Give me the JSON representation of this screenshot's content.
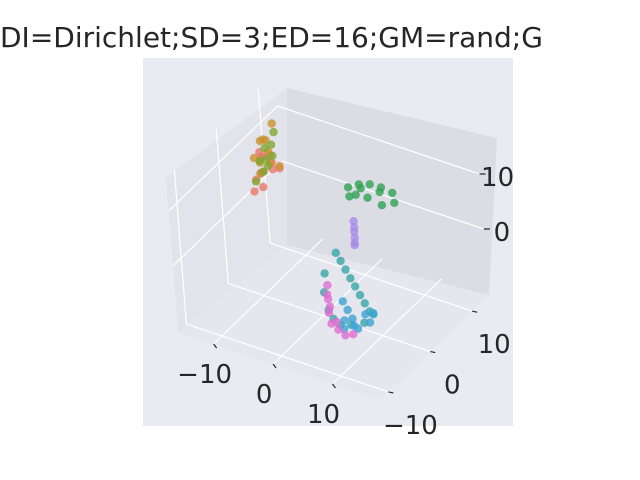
{
  "title": "DI=Dirichlet;SD=3;ED=16;GM=rand;G",
  "chart_data": {
    "type": "scatter3d",
    "title": "DI=Dirichlet;SD=3;ED=16;GM=rand;G",
    "grid": true,
    "xlim": [
      -16,
      18
    ],
    "ylim": [
      -12,
      14
    ],
    "zlim": [
      -12,
      16
    ],
    "x_ticks": [
      "−10",
      "0",
      "10"
    ],
    "y_ticks": [
      "−10",
      "0",
      "10"
    ],
    "z_ticks": [
      "0",
      "10"
    ],
    "series": [
      {
        "color": "#e8756d",
        "x": [
          -13.0,
          -12.5,
          -12.2,
          -13.2,
          -12.0,
          -11.6,
          -12.8,
          -11.8,
          -13.4,
          -12.3,
          -11.5,
          -12.6
        ],
        "y": [
          8.0,
          7.2,
          6.5,
          5.6,
          4.8,
          4.0,
          3.3,
          2.6,
          6.1,
          4.4,
          7.6,
          5.0
        ],
        "z": [
          4.0,
          6.0,
          8.0,
          5.0,
          9.0,
          7.0,
          3.5,
          6.5,
          2.0,
          10.0,
          5.0,
          8.5
        ]
      },
      {
        "color": "#c9922f",
        "x": [
          -12.0,
          -11.5,
          -12.6,
          -11.2,
          -12.2,
          -11.8,
          -12.9,
          -11.4,
          -12.4,
          -11.7
        ],
        "y": [
          6.0,
          5.0,
          7.0,
          4.0,
          3.0,
          8.0,
          5.5,
          6.5,
          4.5,
          3.5
        ],
        "z": [
          9.0,
          12.0,
          6.0,
          13.0,
          10.0,
          5.0,
          11.0,
          14.0,
          8.0,
          7.0
        ]
      },
      {
        "color": "#7fa632",
        "x": [
          -12.5,
          -11.8,
          -12.1,
          -11.4,
          -12.9,
          -11.9,
          -12.3,
          -11.6,
          -13.1
        ],
        "y": [
          7.5,
          6.5,
          5.5,
          4.5,
          6.8,
          3.8,
          5.0,
          7.0,
          4.2
        ],
        "z": [
          7.0,
          10.0,
          8.0,
          11.0,
          5.5,
          9.0,
          6.0,
          12.0,
          4.5
        ]
      },
      {
        "color": "#30a454",
        "x": [
          6.0,
          7.5,
          9.0,
          10.5,
          12.0,
          13.0,
          12.0,
          10.0,
          8.0,
          6.5,
          7.0,
          11.0
        ],
        "y": [
          0.0,
          0.5,
          1.0,
          1.5,
          2.0,
          1.0,
          -0.5,
          -1.0,
          -1.0,
          -0.5,
          1.5,
          0.5
        ],
        "z": [
          13.5,
          14.2,
          14.4,
          14.0,
          13.2,
          12.5,
          12.8,
          13.8,
          13.6,
          12.4,
          12.6,
          14.1
        ]
      },
      {
        "color": "#37a8a8",
        "x": [
          3.0,
          4.5,
          6.0,
          7.5,
          9.0,
          10.5,
          12.0,
          13.5,
          14.5,
          14.0,
          12.5,
          11.0,
          9.5,
          8.0,
          5.5,
          3.5
        ],
        "y": [
          0.0,
          -1.0,
          -2.0,
          -3.0,
          -4.0,
          -5.0,
          -6.0,
          -7.0,
          -7.5,
          -9.0,
          -10.0,
          -10.5,
          -10.0,
          -9.0,
          -6.5,
          -3.5
        ],
        "z": [
          0.5,
          0.3,
          0.0,
          -0.3,
          -0.5,
          -0.8,
          -1.0,
          -1.2,
          -1.0,
          -1.6,
          -1.8,
          -2.0,
          -1.8,
          -1.5,
          -1.0,
          -0.5
        ]
      },
      {
        "color": "#3fa3d4",
        "x": [
          9.0,
          10.5,
          12.0,
          13.0,
          14.0,
          15.0,
          13.5,
          12.0,
          11.0,
          14.5
        ],
        "y": [
          -7.0,
          -8.0,
          -9.0,
          -10.0,
          -10.5,
          -9.0,
          -8.0,
          -11.0,
          -9.5,
          -7.5
        ],
        "z": [
          -1.0,
          -1.3,
          -1.6,
          -1.8,
          -1.6,
          -1.2,
          -1.0,
          -2.0,
          -1.9,
          -0.8
        ]
      },
      {
        "color": "#a68de8",
        "x": [
          6.0,
          6.1,
          6.0,
          6.2,
          6.1,
          5.9
        ],
        "y": [
          0.5,
          0.5,
          0.6,
          0.4,
          0.5,
          0.6
        ],
        "z": [
          3.0,
          4.0,
          5.0,
          6.0,
          7.0,
          2.5
        ]
      },
      {
        "color": "#e06dd0",
        "x": [
          5.0,
          6.5,
          8.0,
          9.5,
          11.0,
          12.5,
          13.5,
          10.0,
          7.5,
          6.0
        ],
        "y": [
          -5.0,
          -7.0,
          -9.0,
          -10.5,
          -11.0,
          -11.5,
          -11.0,
          -10.0,
          -8.0,
          -6.5
        ],
        "z": [
          -1.0,
          -1.5,
          -2.0,
          -2.3,
          -2.5,
          -2.6,
          -2.4,
          -2.2,
          -1.8,
          -1.2
        ]
      }
    ]
  }
}
